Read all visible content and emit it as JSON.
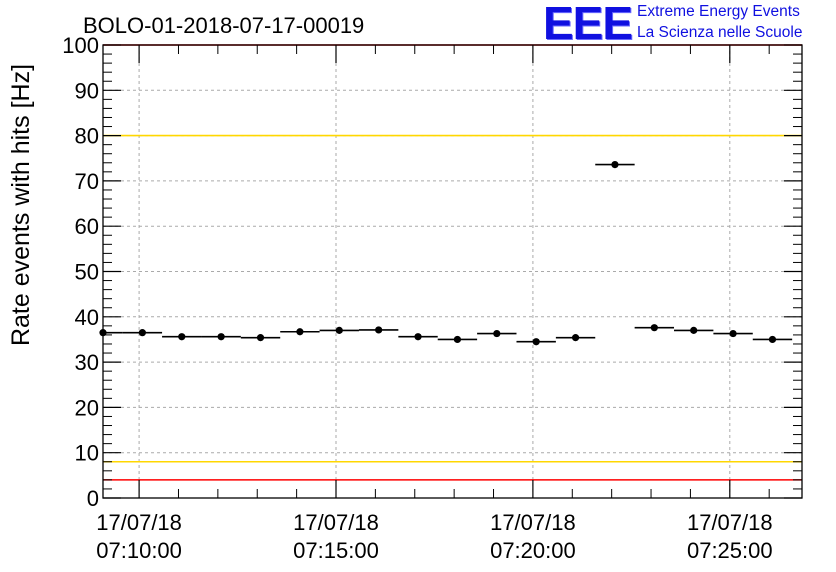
{
  "header": {
    "run_title": "BOLO-01-2018-07-17-00019",
    "logo_text": "EEE",
    "logo_line1": "Extreme Energy Events",
    "logo_line2": "La Scienza nelle Scuole"
  },
  "colors": {
    "limit_red": "#ff0000",
    "limit_yellow": "#ffd700",
    "grid": "#aaaaaa",
    "points": "#000000",
    "logo_blue": "#1010e0"
  },
  "chart_data": {
    "type": "scatter",
    "title": "BOLO-01-2018-07-17-00019",
    "ylabel": "Rate events with hits [Hz]",
    "xlabel": "",
    "ylim": [
      0,
      100
    ],
    "y_ticks": [
      "0",
      "10",
      "20",
      "30",
      "40",
      "50",
      "60",
      "70",
      "80",
      "90",
      "100"
    ],
    "x_ticks": [
      {
        "date": "17/07/18",
        "time": "07:10:00"
      },
      {
        "date": "17/07/18",
        "time": "07:15:00"
      },
      {
        "date": "17/07/18",
        "time": "07:20:00"
      },
      {
        "date": "17/07/18",
        "time": "07:25:00"
      }
    ],
    "x_range": [
      "2018-07-17 07:09:05",
      "2018-07-17 07:26:50"
    ],
    "bin_width_seconds": 60,
    "grid": true,
    "reference_lines": [
      {
        "y": 100,
        "color": "red"
      },
      {
        "y": 80,
        "color": "yellow"
      },
      {
        "y": 8,
        "color": "yellow"
      },
      {
        "y": 4,
        "color": "red"
      }
    ],
    "points": [
      {
        "x": "07:09:05",
        "y": 36.5
      },
      {
        "x": "07:10:05",
        "y": 36.5
      },
      {
        "x": "07:11:05",
        "y": 35.6
      },
      {
        "x": "07:12:05",
        "y": 35.6
      },
      {
        "x": "07:13:05",
        "y": 35.4
      },
      {
        "x": "07:14:05",
        "y": 36.7
      },
      {
        "x": "07:15:05",
        "y": 37.0
      },
      {
        "x": "07:16:05",
        "y": 37.1
      },
      {
        "x": "07:17:05",
        "y": 35.6
      },
      {
        "x": "07:18:05",
        "y": 35.0
      },
      {
        "x": "07:19:05",
        "y": 36.3
      },
      {
        "x": "07:20:05",
        "y": 34.5
      },
      {
        "x": "07:21:05",
        "y": 35.4
      },
      {
        "x": "07:22:05",
        "y": 73.6
      },
      {
        "x": "07:23:05",
        "y": 37.6
      },
      {
        "x": "07:24:05",
        "y": 37.0
      },
      {
        "x": "07:25:05",
        "y": 36.3
      },
      {
        "x": "07:26:05",
        "y": 35.0
      }
    ]
  }
}
